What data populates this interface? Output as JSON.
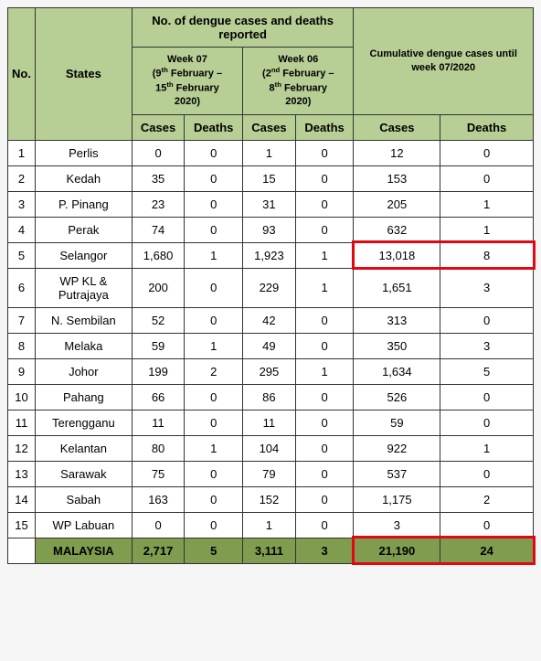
{
  "headers": {
    "no": "No.",
    "states": "States",
    "group_reported": "No. of dengue cases and deaths reported",
    "group_cumulative": "Cumulative dengue cases until week 07/2020",
    "week07_html": "Week 07<br>(9<sup>th</sup> February –<br>15<sup>th</sup> February<br>2020)",
    "week06_html": "Week 06<br>(2<sup>nd</sup> February –<br>8<sup>th</sup> February<br>2020)",
    "cases": "Cases",
    "deaths": "Deaths"
  },
  "rows": [
    {
      "no": "1",
      "state": "Perlis",
      "w07c": "0",
      "w07d": "0",
      "w06c": "1",
      "w06d": "0",
      "cc": "12",
      "cd": "0"
    },
    {
      "no": "2",
      "state": "Kedah",
      "w07c": "35",
      "w07d": "0",
      "w06c": "15",
      "w06d": "0",
      "cc": "153",
      "cd": "0"
    },
    {
      "no": "3",
      "state": "P. Pinang",
      "w07c": "23",
      "w07d": "0",
      "w06c": "31",
      "w06d": "0",
      "cc": "205",
      "cd": "1"
    },
    {
      "no": "4",
      "state": "Perak",
      "w07c": "74",
      "w07d": "0",
      "w06c": "93",
      "w06d": "0",
      "cc": "632",
      "cd": "1"
    },
    {
      "no": "5",
      "state": "Selangor",
      "w07c": "1,680",
      "w07d": "1",
      "w06c": "1,923",
      "w06d": "1",
      "cc": "13,018",
      "cd": "8"
    },
    {
      "no": "6",
      "state": "WP KL & Putrajaya",
      "w07c": "200",
      "w07d": "0",
      "w06c": "229",
      "w06d": "1",
      "cc": "1,651",
      "cd": "3"
    },
    {
      "no": "7",
      "state": "N. Sembilan",
      "w07c": "52",
      "w07d": "0",
      "w06c": "42",
      "w06d": "0",
      "cc": "313",
      "cd": "0"
    },
    {
      "no": "8",
      "state": "Melaka",
      "w07c": "59",
      "w07d": "1",
      "w06c": "49",
      "w06d": "0",
      "cc": "350",
      "cd": "3"
    },
    {
      "no": "9",
      "state": "Johor",
      "w07c": "199",
      "w07d": "2",
      "w06c": "295",
      "w06d": "1",
      "cc": "1,634",
      "cd": "5"
    },
    {
      "no": "10",
      "state": "Pahang",
      "w07c": "66",
      "w07d": "0",
      "w06c": "86",
      "w06d": "0",
      "cc": "526",
      "cd": "0"
    },
    {
      "no": "11",
      "state": "Terengganu",
      "w07c": "11",
      "w07d": "0",
      "w06c": "11",
      "w06d": "0",
      "cc": "59",
      "cd": "0"
    },
    {
      "no": "12",
      "state": "Kelantan",
      "w07c": "80",
      "w07d": "1",
      "w06c": "104",
      "w06d": "0",
      "cc": "922",
      "cd": "1"
    },
    {
      "no": "13",
      "state": "Sarawak",
      "w07c": "75",
      "w07d": "0",
      "w06c": "79",
      "w06d": "0",
      "cc": "537",
      "cd": "0"
    },
    {
      "no": "14",
      "state": "Sabah",
      "w07c": "163",
      "w07d": "0",
      "w06c": "152",
      "w06d": "0",
      "cc": "1,175",
      "cd": "2"
    },
    {
      "no": "15",
      "state": "WP Labuan",
      "w07c": "0",
      "w07d": "0",
      "w06c": "1",
      "w06d": "0",
      "cc": "3",
      "cd": "0"
    }
  ],
  "total": {
    "state": "MALAYSIA",
    "w07c": "2,717",
    "w07d": "5",
    "w06c": "3,111",
    "w06d": "3",
    "cc": "21,190",
    "cd": "24"
  },
  "colors": {
    "header_bg": "#b7ce95",
    "total_bg": "#7f9c4f",
    "highlight_border": "#e30613",
    "border": "#333333",
    "bg": "#ffffff"
  },
  "highlights": [
    {
      "row_index": 4,
      "cols": [
        "cc",
        "cd"
      ]
    },
    {
      "row_index": "total",
      "cols": [
        "cc",
        "cd"
      ]
    }
  ]
}
